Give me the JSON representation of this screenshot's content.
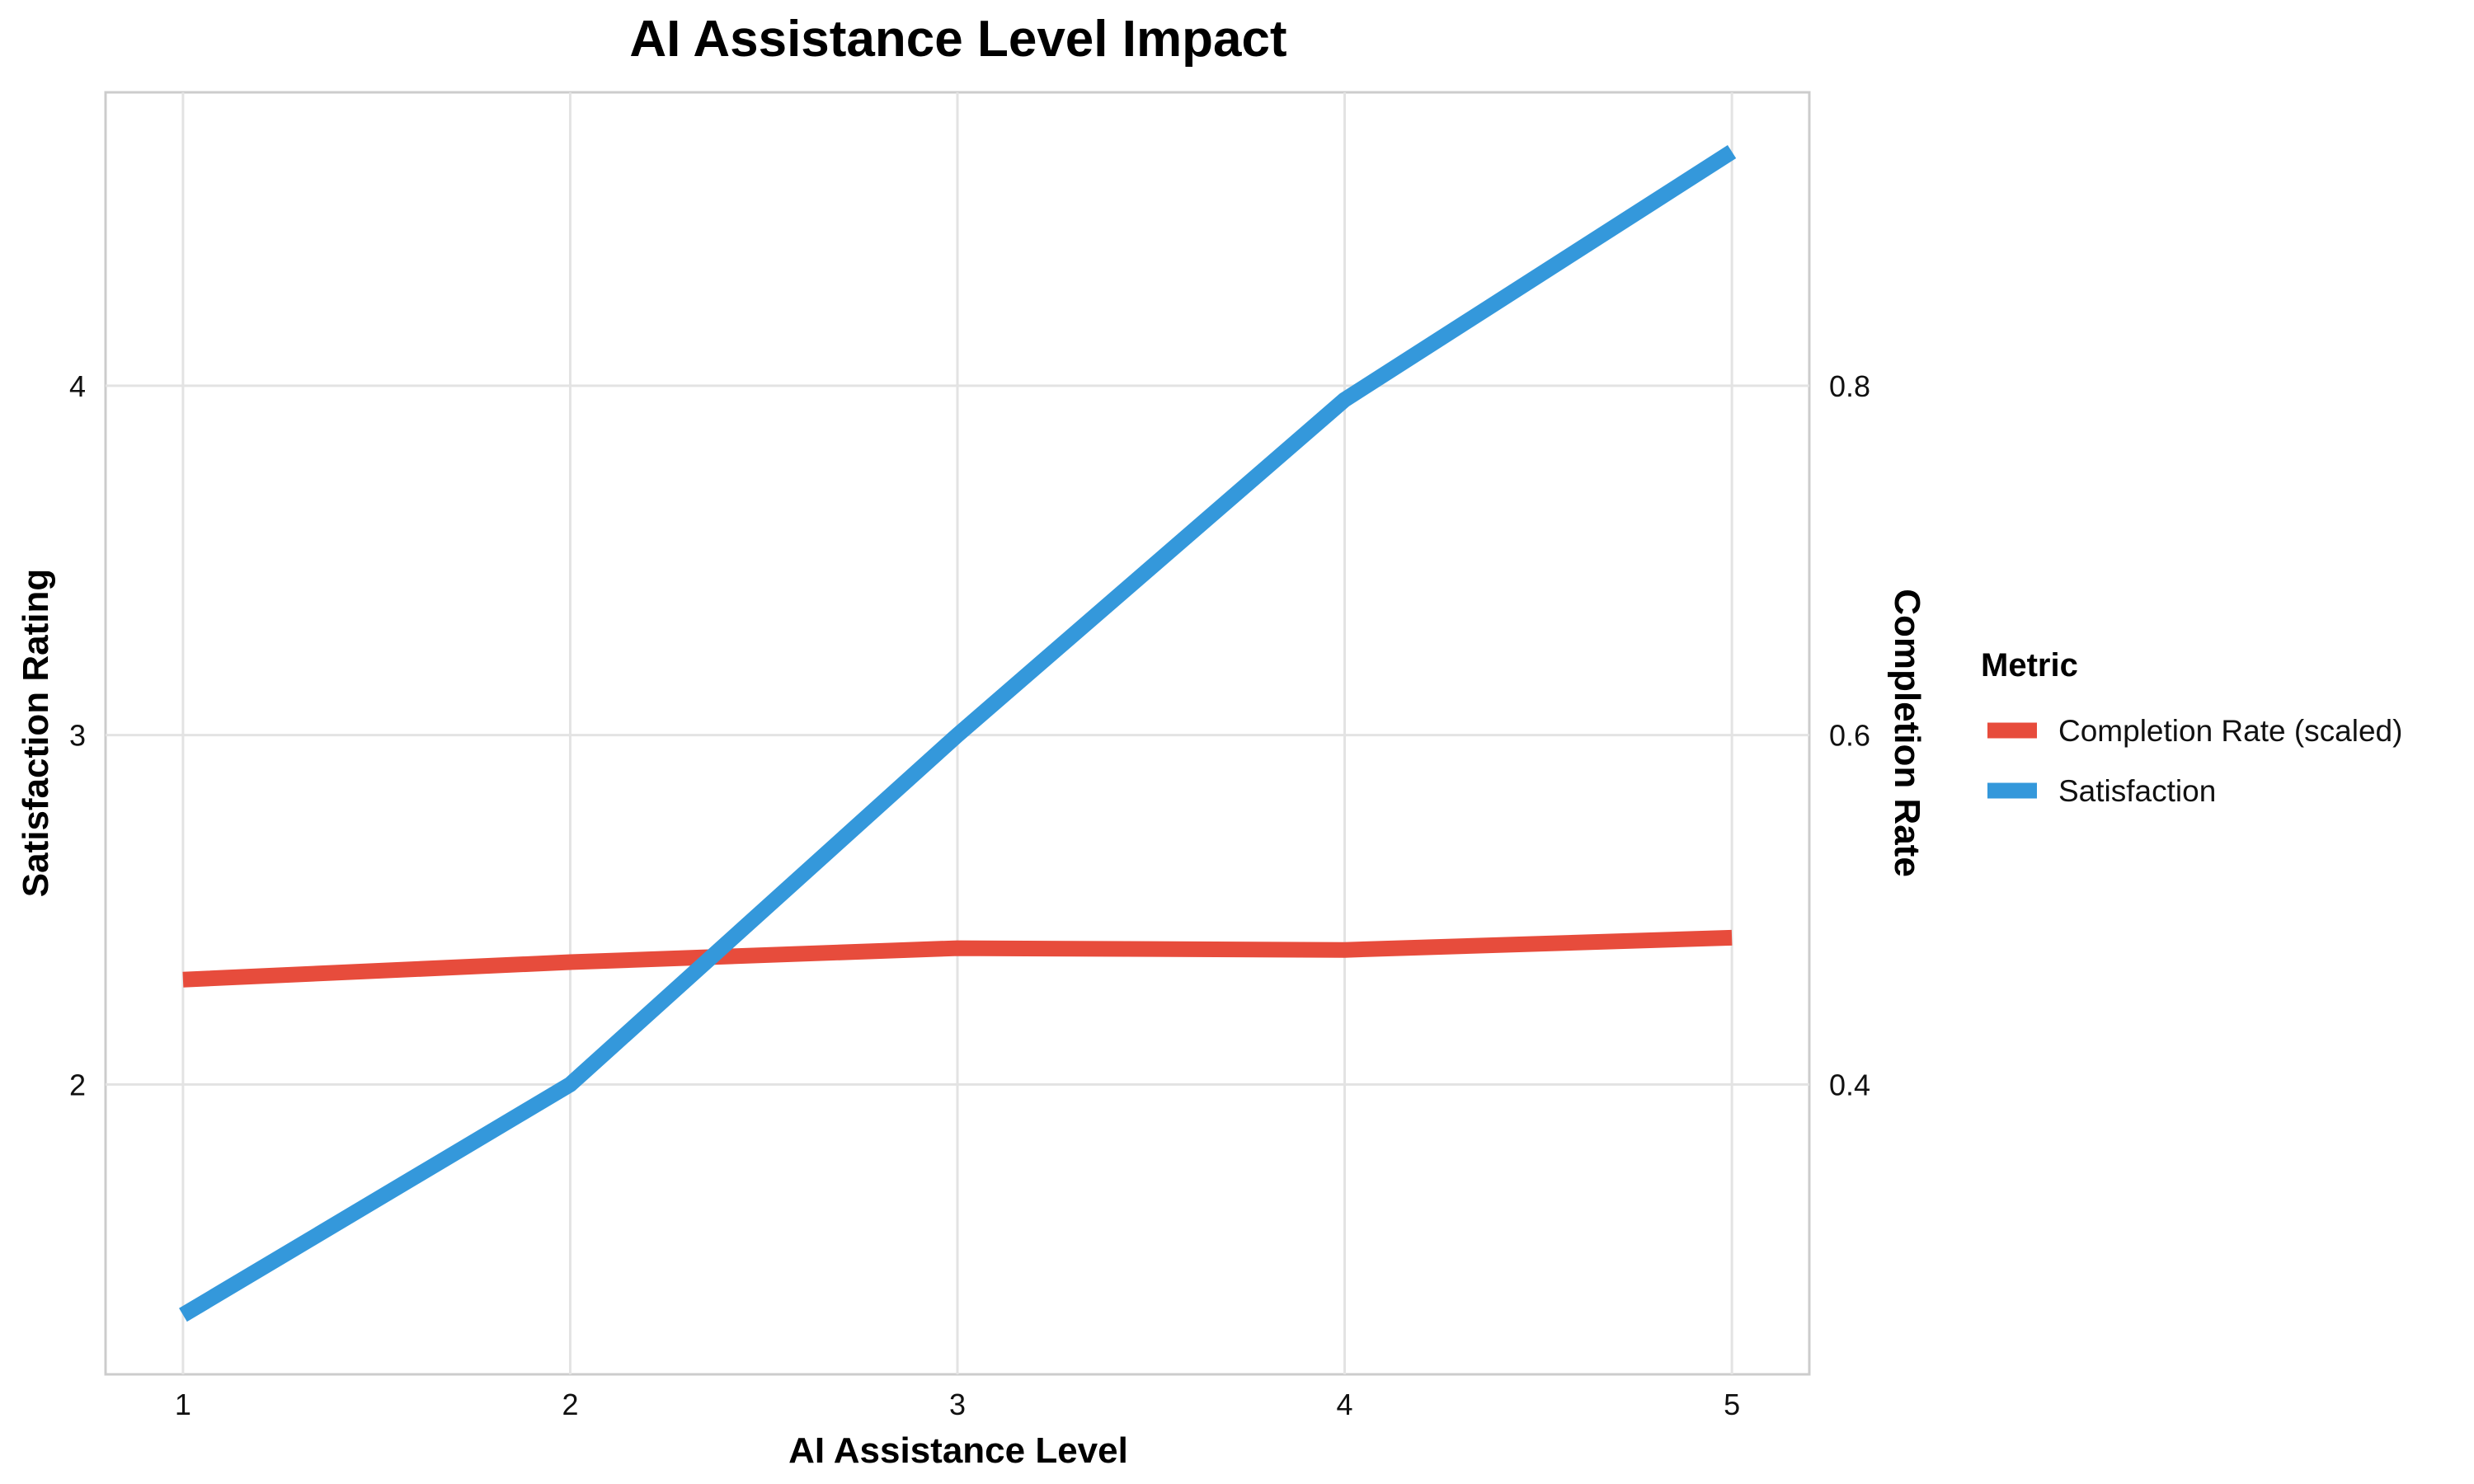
{
  "chart_data": {
    "type": "line",
    "title": "AI Assistance Level Impact",
    "xlabel": "AI Assistance Level",
    "ylabel": "Satisfaction Rating",
    "y2label": "Completion Rate",
    "x": [
      1,
      2,
      3,
      4,
      5
    ],
    "x_ticks": [
      "1",
      "2",
      "3",
      "4",
      "5"
    ],
    "xlim": [
      0.8,
      5.2
    ],
    "ylim": [
      1.17,
      4.84
    ],
    "y_ticks": [
      "2",
      "3",
      "4"
    ],
    "y_tick_values": [
      2,
      3,
      4
    ],
    "y2_ticks": [
      "0.4",
      "0.6",
      "0.8"
    ],
    "y2_tick_values": [
      0.4,
      0.6,
      0.8
    ],
    "y2_scale": 0.2,
    "grid": true,
    "legend": {
      "title": "Metric",
      "placement": "right"
    },
    "series": [
      {
        "name": "Completion Rate (scaled)",
        "color": "#e74c3c",
        "values": [
          2.3,
          2.35,
          2.39,
          2.385,
          2.42
        ]
      },
      {
        "name": "Satisfaction",
        "color": "#3498db",
        "values": [
          1.34,
          2.0,
          3.0,
          3.96,
          4.67
        ]
      }
    ]
  }
}
